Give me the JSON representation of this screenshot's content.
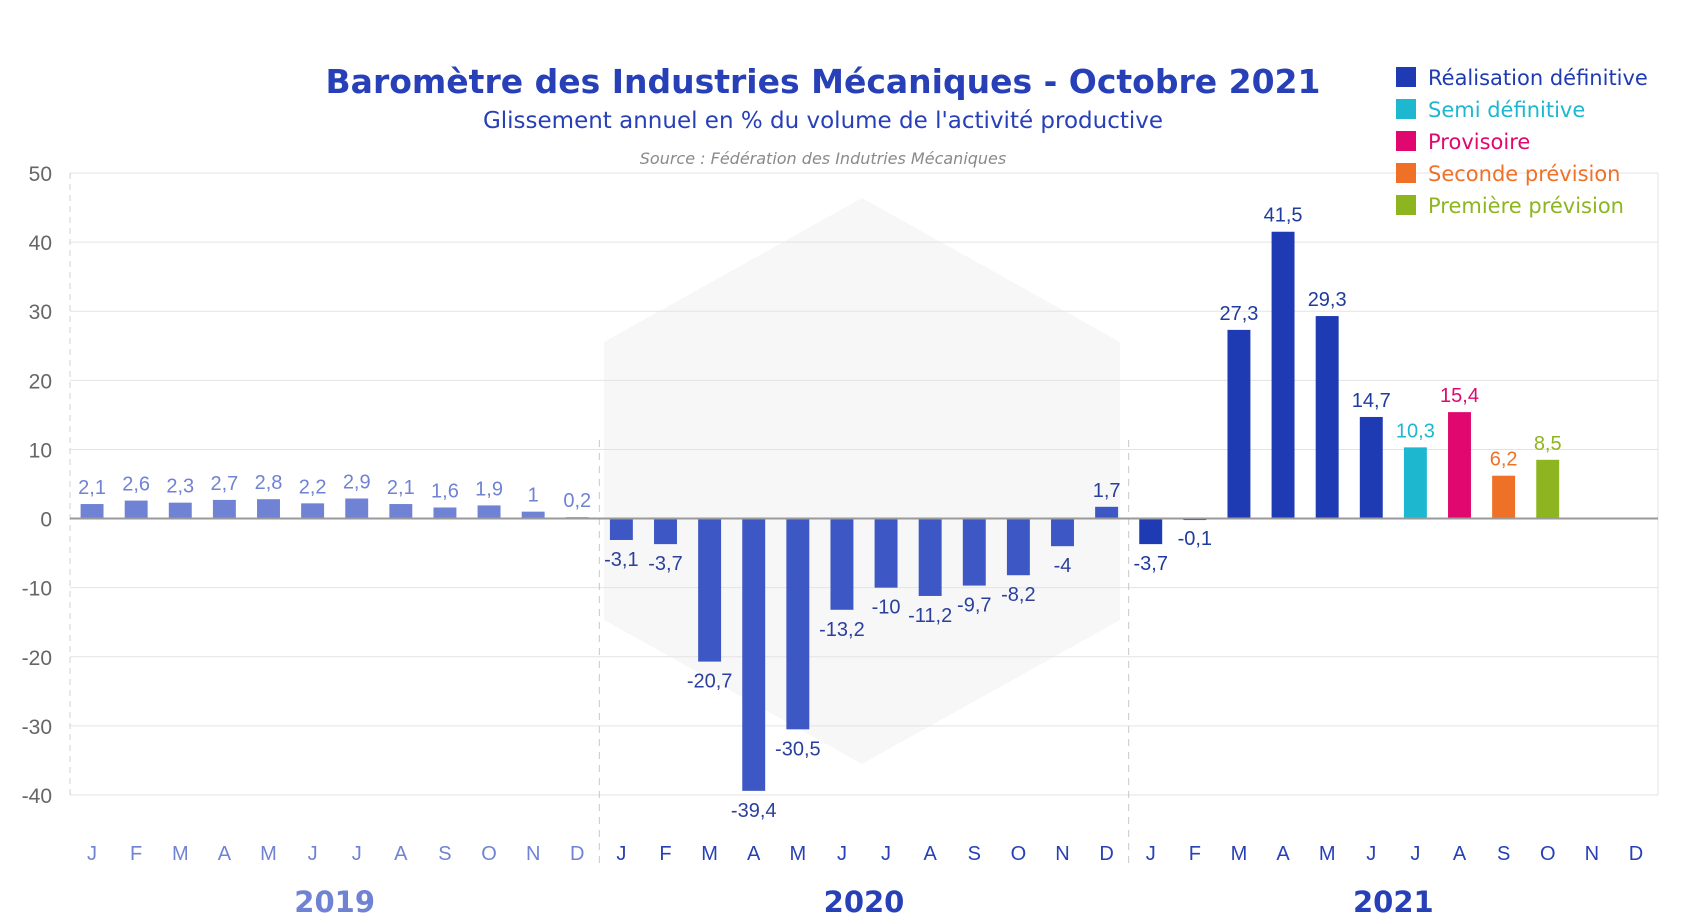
{
  "chart_data": {
    "type": "bar",
    "title": "Baromètre des Industries Mécaniques - Octobre 2021",
    "subtitle": "Glissement annuel en % du volume de l'activité productive",
    "source": "Source : Fédération des Indutries Mécaniques",
    "ylim": [
      -40,
      50
    ],
    "yticks": [
      50,
      40,
      30,
      20,
      10,
      0,
      -10,
      -20,
      -30,
      -40
    ],
    "grid": true,
    "legend_position": "top-right",
    "years": [
      "2019",
      "2020",
      "2021"
    ],
    "year_colors": [
      "#7082d4",
      "#2740b8",
      "#2740b8"
    ],
    "month_labels": [
      "J",
      "F",
      "M",
      "A",
      "M",
      "J",
      "J",
      "A",
      "S",
      "O",
      "N",
      "D"
    ],
    "legend": [
      {
        "name": "Réalisation définitive",
        "color": "#1f3bb3"
      },
      {
        "name": "Semi définitive",
        "color": "#1db8cf"
      },
      {
        "name": "Provisoire",
        "color": "#e0086e"
      },
      {
        "name": "Seconde prévision",
        "color": "#ef7128"
      },
      {
        "name": "Première prévision",
        "color": "#8db51f"
      }
    ],
    "bars": [
      {
        "value": 2.1,
        "label": "2,1",
        "status": "2019"
      },
      {
        "value": 2.6,
        "label": "2,6",
        "status": "2019"
      },
      {
        "value": 2.3,
        "label": "2,3",
        "status": "2019"
      },
      {
        "value": 2.7,
        "label": "2,7",
        "status": "2019"
      },
      {
        "value": 2.8,
        "label": "2,8",
        "status": "2019"
      },
      {
        "value": 2.2,
        "label": "2,2",
        "status": "2019"
      },
      {
        "value": 2.9,
        "label": "2,9",
        "status": "2019"
      },
      {
        "value": 2.1,
        "label": "2,1",
        "status": "2019"
      },
      {
        "value": 1.6,
        "label": "1,6",
        "status": "2019"
      },
      {
        "value": 1.9,
        "label": "1,9",
        "status": "2019"
      },
      {
        "value": 1.0,
        "label": "1",
        "status": "2019"
      },
      {
        "value": 0.2,
        "label": "0,2",
        "status": "2019"
      },
      {
        "value": -3.1,
        "label": "-3,1",
        "status": "2020"
      },
      {
        "value": -3.7,
        "label": "-3,7",
        "status": "2020"
      },
      {
        "value": -20.7,
        "label": "-20,7",
        "status": "2020"
      },
      {
        "value": -39.4,
        "label": "-39,4",
        "status": "2020"
      },
      {
        "value": -30.5,
        "label": "-30,5",
        "status": "2020"
      },
      {
        "value": -13.2,
        "label": "-13,2",
        "status": "2020"
      },
      {
        "value": -10,
        "label": "-10",
        "status": "2020"
      },
      {
        "value": -11.2,
        "label": "-11,2",
        "status": "2020"
      },
      {
        "value": -9.7,
        "label": "-9,7",
        "status": "2020"
      },
      {
        "value": -8.2,
        "label": "-8,2",
        "status": "2020"
      },
      {
        "value": -4,
        "label": "-4",
        "status": "2020"
      },
      {
        "value": 1.7,
        "label": "1,7",
        "status": "2020"
      },
      {
        "value": -3.7,
        "label": "-3,7",
        "status": "final"
      },
      {
        "value": -0.1,
        "label": "-0,1",
        "status": "final"
      },
      {
        "value": 27.3,
        "label": "27,3",
        "status": "final"
      },
      {
        "value": 41.5,
        "label": "41,5",
        "status": "final"
      },
      {
        "value": 29.3,
        "label": "29,3",
        "status": "final"
      },
      {
        "value": 14.7,
        "label": "14,7",
        "status": "final"
      },
      {
        "value": 10.3,
        "label": "10,3",
        "status": "semi"
      },
      {
        "value": 15.4,
        "label": "15,4",
        "status": "provisional"
      },
      {
        "value": 6.2,
        "label": "6,2",
        "status": "second"
      },
      {
        "value": 8.5,
        "label": "8,5",
        "status": "first"
      },
      {
        "value": null,
        "label": "",
        "status": "none"
      },
      {
        "value": null,
        "label": "",
        "status": "none"
      }
    ],
    "status_colors": {
      "2019": "#7082d4",
      "2020": "#3d58c4",
      "final": "#1f3bb3",
      "semi": "#1db8cf",
      "provisional": "#e0086e",
      "second": "#ef7128",
      "first": "#8db51f",
      "none": "#ffffff"
    },
    "label_colors": {
      "2019": "#7082d4",
      "2020": "#2b3f9e",
      "final": "#1f3b9e",
      "semi": "#1db8cf",
      "provisional": "#e0086e",
      "second": "#ef7128",
      "first": "#8db51f",
      "none": "#ffffff"
    }
  }
}
